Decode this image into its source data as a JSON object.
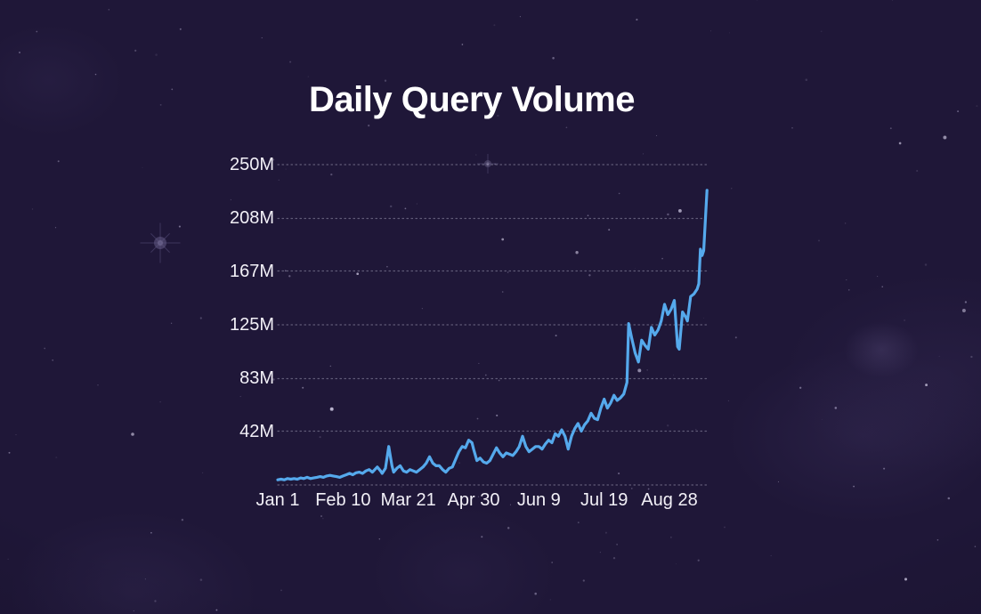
{
  "page": {
    "title": "Daily Query Volume"
  },
  "colors": {
    "background": "#1f1738",
    "accent_line": "#55a9ec",
    "gridline": "rgba(232,228,248,0.33)",
    "text": "#ffffff"
  },
  "chart_data": {
    "type": "line",
    "title": "Daily Query Volume",
    "legend": "none",
    "grid": "horizontal dotted",
    "x": {
      "tick_labels": [
        "Jan 1",
        "Feb 10",
        "Mar 21",
        "Apr 30",
        "Jun 9",
        "Jul 19",
        "Aug 28"
      ],
      "tick_days": [
        0,
        40,
        80,
        120,
        160,
        200,
        240
      ],
      "unit": "date (day offset from Jan 1)",
      "range_days": [
        0,
        263
      ]
    },
    "y": {
      "tick_labels": [
        "250M",
        "208M",
        "167M",
        "125M",
        "83M",
        "42M"
      ],
      "tick_values": [
        250,
        208,
        167,
        125,
        83,
        42
      ],
      "baseline_value": 0,
      "range": [
        0,
        250
      ],
      "unit": "queries per day (millions)"
    },
    "series": [
      {
        "name": "daily-query-volume",
        "points": [
          [
            0,
            4
          ],
          [
            2,
            4.5
          ],
          [
            4,
            4
          ],
          [
            6,
            5
          ],
          [
            8,
            4.5
          ],
          [
            10,
            5
          ],
          [
            12,
            4.5
          ],
          [
            14,
            5.5
          ],
          [
            16,
            5
          ],
          [
            18,
            6
          ],
          [
            20,
            5
          ],
          [
            22,
            5.5
          ],
          [
            24,
            6
          ],
          [
            26,
            6.5
          ],
          [
            28,
            6
          ],
          [
            30,
            7
          ],
          [
            32,
            7.5
          ],
          [
            34,
            7
          ],
          [
            36,
            6.5
          ],
          [
            38,
            6
          ],
          [
            40,
            7
          ],
          [
            42,
            8
          ],
          [
            44,
            9
          ],
          [
            46,
            8
          ],
          [
            48,
            9.5
          ],
          [
            50,
            10
          ],
          [
            52,
            9
          ],
          [
            54,
            11
          ],
          [
            56,
            12
          ],
          [
            58,
            10
          ],
          [
            61,
            14
          ],
          [
            63,
            11
          ],
          [
            64,
            9
          ],
          [
            66,
            13
          ],
          [
            68,
            30
          ],
          [
            70,
            15
          ],
          [
            71,
            10
          ],
          [
            73,
            13
          ],
          [
            75,
            15
          ],
          [
            77,
            11
          ],
          [
            79,
            10
          ],
          [
            81,
            12
          ],
          [
            83,
            11
          ],
          [
            85,
            10
          ],
          [
            87,
            12
          ],
          [
            89,
            14
          ],
          [
            91,
            17
          ],
          [
            93,
            22
          ],
          [
            95,
            17
          ],
          [
            97,
            15
          ],
          [
            99,
            15
          ],
          [
            101,
            12
          ],
          [
            103,
            10
          ],
          [
            105,
            13
          ],
          [
            107,
            14
          ],
          [
            109,
            20
          ],
          [
            111,
            26
          ],
          [
            113,
            30
          ],
          [
            115,
            29
          ],
          [
            117,
            35
          ],
          [
            119,
            33
          ],
          [
            120,
            28
          ],
          [
            122,
            19
          ],
          [
            124,
            21
          ],
          [
            126,
            18
          ],
          [
            128,
            17
          ],
          [
            130,
            19
          ],
          [
            132,
            24
          ],
          [
            134,
            29
          ],
          [
            136,
            25
          ],
          [
            138,
            22
          ],
          [
            140,
            25
          ],
          [
            142,
            24
          ],
          [
            144,
            23
          ],
          [
            146,
            26
          ],
          [
            148,
            30
          ],
          [
            150,
            38
          ],
          [
            152,
            30
          ],
          [
            154,
            26
          ],
          [
            156,
            28
          ],
          [
            158,
            30
          ],
          [
            160,
            30
          ],
          [
            162,
            28
          ],
          [
            164,
            32
          ],
          [
            166,
            35
          ],
          [
            168,
            33
          ],
          [
            170,
            40
          ],
          [
            172,
            38
          ],
          [
            174,
            43
          ],
          [
            176,
            38
          ],
          [
            178,
            28
          ],
          [
            180,
            38
          ],
          [
            182,
            44
          ],
          [
            184,
            48
          ],
          [
            186,
            42
          ],
          [
            188,
            47
          ],
          [
            190,
            50
          ],
          [
            192,
            56
          ],
          [
            194,
            52
          ],
          [
            196,
            51
          ],
          [
            198,
            60
          ],
          [
            200,
            67
          ],
          [
            202,
            60
          ],
          [
            204,
            64
          ],
          [
            206,
            70
          ],
          [
            208,
            66
          ],
          [
            210,
            68
          ],
          [
            212,
            71
          ],
          [
            214,
            80
          ],
          [
            215,
            126
          ],
          [
            217,
            114
          ],
          [
            219,
            103
          ],
          [
            221,
            96
          ],
          [
            223,
            113
          ],
          [
            225,
            109
          ],
          [
            227,
            106
          ],
          [
            229,
            123
          ],
          [
            231,
            117
          ],
          [
            233,
            121
          ],
          [
            235,
            128
          ],
          [
            237,
            141
          ],
          [
            239,
            133
          ],
          [
            241,
            137
          ],
          [
            243,
            144
          ],
          [
            245,
            108
          ],
          [
            246,
            106
          ],
          [
            248,
            135
          ],
          [
            250,
            131
          ],
          [
            251,
            128
          ],
          [
            253,
            147
          ],
          [
            255,
            149
          ],
          [
            257,
            153
          ],
          [
            258,
            157
          ],
          [
            259,
            184
          ],
          [
            260,
            179
          ],
          [
            261,
            183
          ],
          [
            263,
            230
          ]
        ]
      }
    ]
  }
}
